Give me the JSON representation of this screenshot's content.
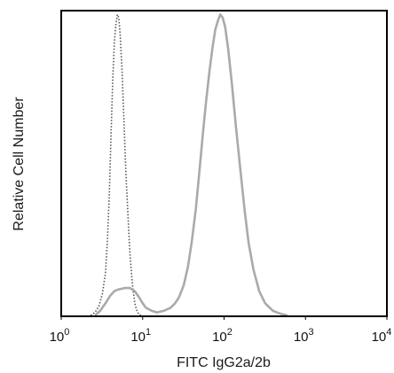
{
  "chart_data": {
    "type": "line",
    "title": "",
    "xlabel": "FITC IgG2a/2b",
    "ylabel": "Relative Cell Number",
    "x_scale": "log",
    "xlim": [
      1,
      10000
    ],
    "ylim": [
      0,
      100
    ],
    "x_ticks": [
      {
        "base": "10",
        "exp": "0"
      },
      {
        "base": "10",
        "exp": "1"
      },
      {
        "base": "10",
        "exp": "2"
      },
      {
        "base": "10",
        "exp": "3"
      },
      {
        "base": "10",
        "exp": "4"
      }
    ],
    "grid": false,
    "legend": "none",
    "series": [
      {
        "style": "dotted",
        "color": "#555555",
        "points": [
          [
            2.3,
            0
          ],
          [
            2.6,
            1
          ],
          [
            2.9,
            3
          ],
          [
            3.2,
            7
          ],
          [
            3.5,
            14
          ],
          [
            3.7,
            25
          ],
          [
            3.9,
            40
          ],
          [
            4.1,
            60
          ],
          [
            4.3,
            78
          ],
          [
            4.5,
            90
          ],
          [
            4.7,
            96
          ],
          [
            4.9,
            99
          ],
          [
            5.1,
            98
          ],
          [
            5.3,
            92
          ],
          [
            5.6,
            80
          ],
          [
            5.9,
            64
          ],
          [
            6.2,
            48
          ],
          [
            6.6,
            33
          ],
          [
            7.0,
            20
          ],
          [
            7.5,
            10
          ],
          [
            8.0,
            4
          ],
          [
            8.5,
            1.5
          ],
          [
            9.0,
            0.3
          ],
          [
            9.5,
            0
          ]
        ]
      },
      {
        "style": "solid",
        "color": "#aaaaaa",
        "points": [
          [
            2.6,
            0
          ],
          [
            3.0,
            1.5
          ],
          [
            3.5,
            4
          ],
          [
            4.0,
            6.5
          ],
          [
            4.5,
            8
          ],
          [
            5.0,
            8.5
          ],
          [
            6.0,
            9
          ],
          [
            7.0,
            9
          ],
          [
            8.0,
            8
          ],
          [
            9.0,
            6
          ],
          [
            10.0,
            4
          ],
          [
            11.0,
            2.5
          ],
          [
            13.0,
            1.5
          ],
          [
            15.0,
            1
          ],
          [
            18.0,
            1.5
          ],
          [
            22.0,
            2.5
          ],
          [
            25.0,
            4
          ],
          [
            28.0,
            6
          ],
          [
            32.0,
            10
          ],
          [
            36.0,
            16
          ],
          [
            40.0,
            24
          ],
          [
            45.0,
            35
          ],
          [
            50.0,
            48
          ],
          [
            55.0,
            60
          ],
          [
            60.0,
            70
          ],
          [
            66.0,
            80
          ],
          [
            72.0,
            88
          ],
          [
            78.0,
            94
          ],
          [
            84.0,
            97
          ],
          [
            90.0,
            99
          ],
          [
            96.0,
            98
          ],
          [
            103.0,
            95
          ],
          [
            112.0,
            88
          ],
          [
            125.0,
            76
          ],
          [
            140.0,
            62
          ],
          [
            160.0,
            47
          ],
          [
            180.0,
            34
          ],
          [
            200.0,
            24
          ],
          [
            230.0,
            15
          ],
          [
            270.0,
            8
          ],
          [
            320.0,
            4
          ],
          [
            400.0,
            1.5
          ],
          [
            500.0,
            0.5
          ],
          [
            600.0,
            0
          ]
        ]
      }
    ]
  }
}
